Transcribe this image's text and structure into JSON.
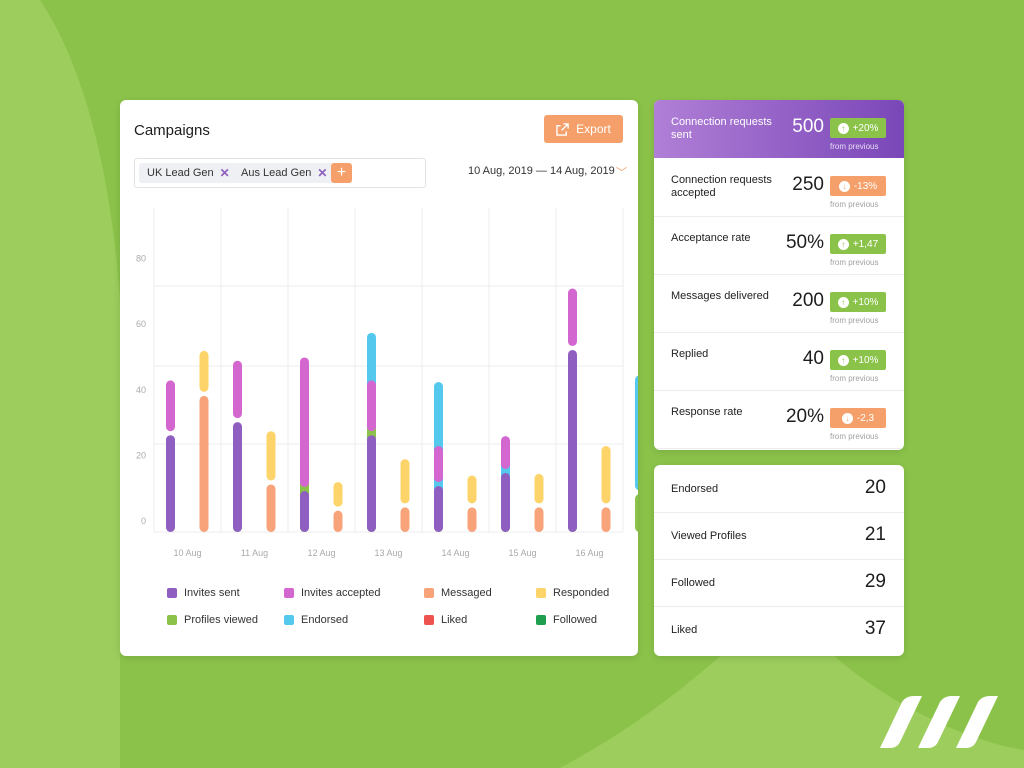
{
  "campaigns": {
    "title": "Campaigns",
    "export_label": "Export",
    "filters": [
      "UK Lead Gen",
      "Aus Lead Gen"
    ],
    "add_label": "+",
    "date_range": "10 Aug, 2019 — 14 Aug, 2019"
  },
  "chart_data": {
    "type": "bar",
    "stacked": true,
    "categories": [
      "10 Aug",
      "11 Aug",
      "12 Aug",
      "13 Aug",
      "14 Aug",
      "15 Aug",
      "16 Aug"
    ],
    "ylim": [
      0,
      90
    ],
    "yticks": [
      0,
      20,
      40,
      60,
      80
    ],
    "grid": true,
    "legend_placement": "bottom",
    "legend": [
      {
        "name": "Invites sent",
        "color": "#8e5fc0"
      },
      {
        "name": "Invites accepted",
        "color": "#d467cf"
      },
      {
        "name": "Messaged",
        "color": "#f8a37a"
      },
      {
        "name": "Responded",
        "color": "#fdd46a"
      },
      {
        "name": "Profiles viewed",
        "color": "#8bc34a"
      },
      {
        "name": "Endorsed",
        "color": "#55c8ee"
      },
      {
        "name": "Liked",
        "color": "#ef5350"
      },
      {
        "name": "Followed",
        "color": "#1e9e4f"
      }
    ],
    "groups": [
      [
        {
          "segments": [
            {
              "series": "Invites sent",
              "value": 29.5
            },
            {
              "series": "Invites accepted",
              "value": 15.5
            }
          ]
        },
        {
          "segments": [
            {
              "series": "Messaged",
              "value": 41.5
            },
            {
              "series": "Responded",
              "value": 12.5
            }
          ]
        },
        {
          "segments": [
            {
              "series": "Profiles viewed",
              "value": 9
            },
            {
              "series": "Endorsed",
              "value": 14.5
            }
          ]
        }
      ],
      [
        {
          "segments": [
            {
              "series": "Invites sent",
              "value": 33.5
            },
            {
              "series": "Invites accepted",
              "value": 17.5
            }
          ]
        },
        {
          "segments": [
            {
              "series": "Messaged",
              "value": 14.5
            },
            {
              "series": "Responded",
              "value": 15
            }
          ]
        },
        {
          "segments": [
            {
              "series": "Profiles viewed",
              "value": 24.5
            },
            {
              "series": "Endorsed",
              "value": 8
            }
          ]
        }
      ],
      [
        {
          "segments": [
            {
              "series": "Invites sent",
              "value": 12.5
            },
            {
              "series": "Invites accepted",
              "value": 39.5
            }
          ]
        },
        {
          "segments": [
            {
              "series": "Messaged",
              "value": 6.5
            },
            {
              "series": "Responded",
              "value": 7.5
            }
          ]
        },
        {
          "segments": [
            {
              "series": "Profiles viewed",
              "value": 42
            },
            {
              "series": "Endorsed",
              "value": 17.5
            }
          ]
        }
      ],
      [
        {
          "segments": [
            {
              "series": "Invites sent",
              "value": 29.5
            },
            {
              "series": "Invites accepted",
              "value": 15.5
            }
          ]
        },
        {
          "segments": [
            {
              "series": "Messaged",
              "value": 7.5
            },
            {
              "series": "Responded",
              "value": 13.5
            }
          ]
        },
        {
          "segments": [
            {
              "series": "Profiles viewed",
              "value": 9
            },
            {
              "series": "Endorsed",
              "value": 35.5
            }
          ]
        }
      ],
      [
        {
          "segments": [
            {
              "series": "Invites sent",
              "value": 14
            },
            {
              "series": "Invites accepted",
              "value": 11
            }
          ]
        },
        {
          "segments": [
            {
              "series": "Messaged",
              "value": 7.5
            },
            {
              "series": "Responded",
              "value": 8.5
            }
          ]
        },
        {
          "segments": [
            {
              "series": "Profiles viewed",
              "value": 7.5
            },
            {
              "series": "Endorsed",
              "value": 20
            }
          ]
        }
      ],
      [
        {
          "segments": [
            {
              "series": "Invites sent",
              "value": 18
            },
            {
              "series": "Invites accepted",
              "value": 10
            }
          ]
        },
        {
          "segments": [
            {
              "series": "Messaged",
              "value": 7.5
            },
            {
              "series": "Responded",
              "value": 9
            }
          ]
        },
        {
          "segments": [
            {
              "series": "Profiles viewed",
              "value": 25
            },
            {
              "series": "Endorsed",
              "value": 20.5
            }
          ]
        }
      ],
      [
        {
          "segments": [
            {
              "series": "Invites sent",
              "value": 55.5
            },
            {
              "series": "Invites accepted",
              "value": 17.5
            }
          ]
        },
        {
          "segments": [
            {
              "series": "Messaged",
              "value": 7.5
            },
            {
              "series": "Responded",
              "value": 17.5
            }
          ]
        },
        {
          "segments": [
            {
              "series": "Profiles viewed",
              "value": 11.5
            },
            {
              "series": "Endorsed",
              "value": 35
            }
          ]
        }
      ]
    ]
  },
  "stats": [
    {
      "label": "Connection requests sent",
      "value": "500",
      "change": "+20%",
      "direction": "up",
      "note": "from previous"
    },
    {
      "label": "Connection requests accepted",
      "value": "250",
      "change": "-13%",
      "direction": "down",
      "note": "from previous"
    },
    {
      "label": "Acceptance rate",
      "value": "50%",
      "change": "+1,47",
      "direction": "up",
      "note": "from previous"
    },
    {
      "label": "Messages delivered",
      "value": "200",
      "change": "+10%",
      "direction": "up",
      "note": "from previous"
    },
    {
      "label": "Replied",
      "value": "40",
      "change": "+10%",
      "direction": "up",
      "note": "from previous"
    },
    {
      "label": "Response rate",
      "value": "20%",
      "change": "-2,3",
      "direction": "down",
      "note": "from previous"
    }
  ],
  "totals": [
    {
      "label": "Endorsed",
      "value": "20"
    },
    {
      "label": "Viewed Profiles",
      "value": "21"
    },
    {
      "label": "Followed",
      "value": "29"
    },
    {
      "label": "Liked",
      "value": "37"
    }
  ],
  "colors": {
    "background": "#8bc34a",
    "accent_orange": "#f5a06a",
    "accent_purple": "#7a47b8",
    "up": "#8bc34a",
    "down": "#f5a06a"
  }
}
